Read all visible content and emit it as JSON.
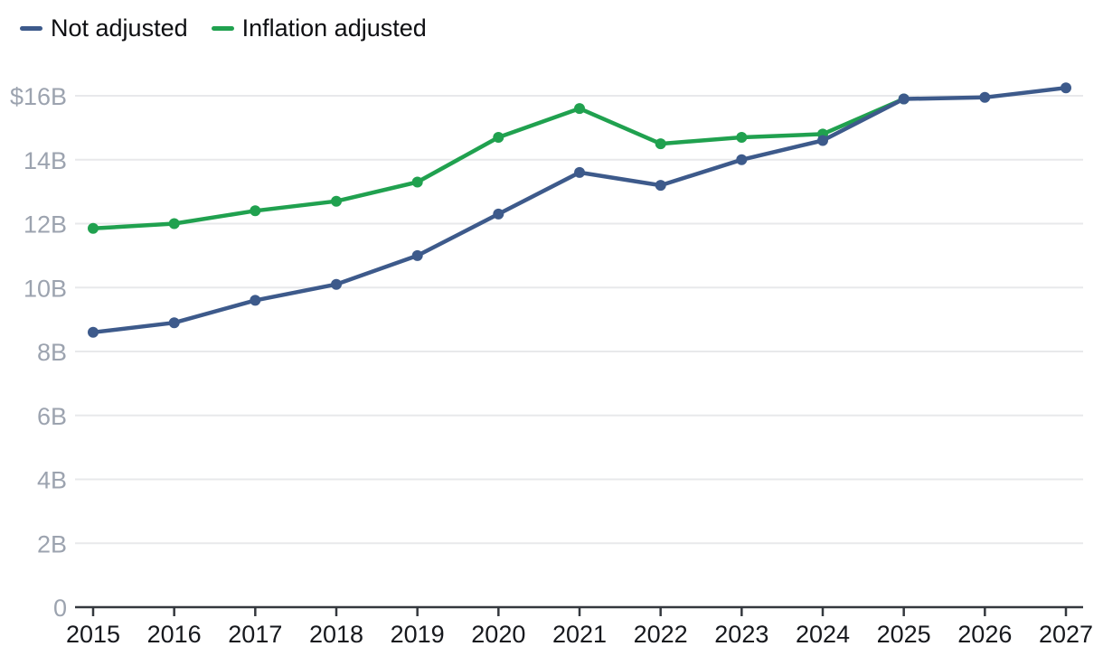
{
  "legend": {
    "items": [
      {
        "label": "Not adjusted",
        "color": "#3d5a8b"
      },
      {
        "label": "Inflation adjusted",
        "color": "#20a14f"
      }
    ]
  },
  "colors": {
    "background": "#ffffff",
    "grid_line": "#e8e9eb",
    "axis_line": "#34383e",
    "x_tick_label": "#16181d",
    "y_tick_label": "#9ca3af",
    "series_not_adjusted": "#3d5a8b",
    "series_inflation_adjusted": "#20a14f"
  },
  "chart_data": {
    "type": "line",
    "title": "",
    "xlabel": "",
    "ylabel": "",
    "x": [
      "2015",
      "2016",
      "2017",
      "2018",
      "2019",
      "2020",
      "2021",
      "2022",
      "2023",
      "2024",
      "2025",
      "2026",
      "2027"
    ],
    "series": [
      {
        "name": "Inflation adjusted",
        "color": "#20a14f",
        "values": [
          11.85,
          12.0,
          12.4,
          12.7,
          13.3,
          14.7,
          15.6,
          14.5,
          14.7,
          14.8,
          15.9,
          null,
          null
        ]
      },
      {
        "name": "Not adjusted",
        "color": "#3d5a8b",
        "values": [
          8.6,
          8.9,
          9.6,
          10.1,
          11.0,
          12.3,
          13.6,
          13.2,
          14.0,
          14.6,
          15.9,
          15.95,
          16.25
        ]
      }
    ],
    "ylim": [
      0,
      16
    ],
    "y_ticks": [
      {
        "value": 16,
        "label": "$16B"
      },
      {
        "value": 14,
        "label": "14B"
      },
      {
        "value": 12,
        "label": "12B"
      },
      {
        "value": 10,
        "label": "10B"
      },
      {
        "value": 8,
        "label": "8B"
      },
      {
        "value": 6,
        "label": "6B"
      },
      {
        "value": 4,
        "label": "4B"
      },
      {
        "value": 2,
        "label": "2B"
      },
      {
        "value": 0,
        "label": "0"
      }
    ],
    "grid": true,
    "legend_position": "top-left",
    "units": "billions of dollars"
  }
}
